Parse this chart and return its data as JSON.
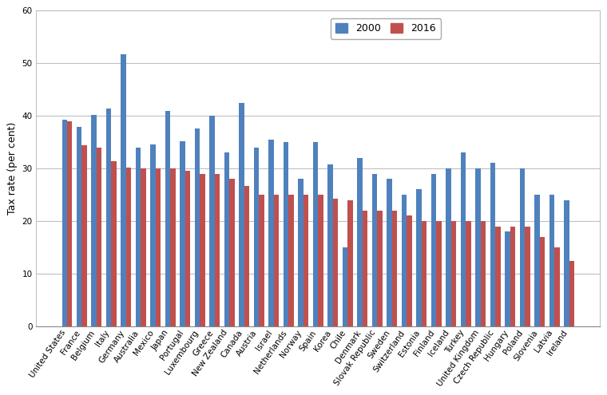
{
  "countries": [
    "United States",
    "France",
    "Belgium",
    "Italy",
    "Germany",
    "Australia",
    "Mexico",
    "Japan",
    "Portugal",
    "Luxembourg",
    "Greece",
    "New Zealand",
    "Canada",
    "Austria",
    "Israel",
    "Netherlands",
    "Norway",
    "Spain",
    "Korea",
    "Chile",
    "Denmark",
    "Slovak Republic",
    "Sweden",
    "Switzerland",
    "Estonia",
    "Finland",
    "Iceland",
    "Turkey",
    "United Kingdom",
    "Czech Republic",
    "Hungary",
    "Poland",
    "Slovenia",
    "Latvia",
    "Ireland"
  ],
  "values_2000": [
    39.3,
    37.8,
    40.2,
    41.3,
    51.6,
    34.0,
    34.5,
    40.9,
    35.2,
    37.5,
    40.0,
    33.0,
    42.4,
    34.0,
    35.5,
    35.0,
    28.0,
    35.0,
    30.8,
    15.0,
    32.0,
    29.0,
    28.0,
    25.0,
    26.0,
    29.0,
    30.0,
    33.0,
    30.0,
    31.0,
    18.0,
    30.0,
    25.0,
    25.0,
    24.0
  ],
  "values_2016": [
    39.0,
    34.4,
    33.9,
    31.4,
    30.2,
    30.0,
    30.0,
    30.0,
    29.5,
    29.0,
    29.0,
    28.0,
    26.7,
    25.0,
    25.0,
    25.0,
    25.0,
    25.0,
    24.2,
    24.0,
    22.0,
    22.0,
    22.0,
    21.1,
    20.0,
    20.0,
    20.0,
    20.0,
    20.0,
    19.0,
    19.0,
    19.0,
    17.0,
    15.0,
    12.5
  ],
  "color_2000": "#4F81BD",
  "color_2016": "#C0504D",
  "ylabel": "Tax rate (per cent)",
  "ylim": [
    0,
    60
  ],
  "yticks": [
    0,
    10,
    20,
    30,
    40,
    50,
    60
  ],
  "grid_color": "#C0C0C0",
  "legend_labels": [
    "2000",
    "2016"
  ],
  "bar_width": 0.35,
  "tick_fontsize": 7.5,
  "ylabel_fontsize": 9
}
